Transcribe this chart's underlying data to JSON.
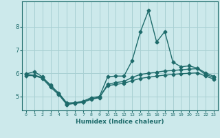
{
  "xlabel": "Humidex (Indice chaleur)",
  "bg_color": "#cce9eb",
  "grid_color": "#a8d0d3",
  "line_color": "#1e6b6b",
  "xlim": [
    -0.5,
    23.5
  ],
  "ylim": [
    4.4,
    9.1
  ],
  "yticks": [
    5,
    6,
    7,
    8
  ],
  "xticks": [
    0,
    1,
    2,
    3,
    4,
    5,
    6,
    7,
    8,
    9,
    10,
    11,
    12,
    13,
    14,
    15,
    16,
    17,
    18,
    19,
    20,
    21,
    22,
    23
  ],
  "curve1_x": [
    0,
    1,
    2,
    3,
    4,
    5,
    6,
    7,
    8,
    9,
    10,
    11,
    12,
    13,
    14,
    15,
    16,
    17,
    18,
    19,
    20,
    21,
    22,
    23
  ],
  "curve1_y": [
    5.97,
    6.07,
    5.85,
    5.45,
    5.15,
    4.72,
    4.73,
    4.8,
    4.95,
    5.0,
    5.85,
    5.88,
    5.88,
    6.55,
    7.78,
    8.7,
    7.35,
    7.8,
    6.48,
    6.28,
    6.32,
    6.22,
    6.02,
    5.87
  ],
  "curve2_x": [
    0,
    1,
    2,
    3,
    4,
    5,
    6,
    7,
    8,
    9,
    10,
    11,
    12,
    13,
    14,
    15,
    16,
    17,
    18,
    19,
    20,
    21,
    22,
    23
  ],
  "curve2_y": [
    5.9,
    5.9,
    5.78,
    5.4,
    5.08,
    4.65,
    4.7,
    4.75,
    4.88,
    4.95,
    5.53,
    5.6,
    5.65,
    5.82,
    5.95,
    6.0,
    6.05,
    6.1,
    6.12,
    6.15,
    6.18,
    6.2,
    5.95,
    5.82
  ],
  "curve3_x": [
    0,
    1,
    2,
    3,
    4,
    5,
    6,
    7,
    8,
    9,
    10,
    11,
    12,
    13,
    14,
    15,
    16,
    17,
    18,
    19,
    20,
    21,
    22,
    23
  ],
  "curve3_y": [
    5.95,
    5.92,
    5.82,
    5.5,
    5.12,
    4.68,
    4.72,
    4.77,
    4.9,
    4.97,
    5.47,
    5.52,
    5.57,
    5.68,
    5.78,
    5.83,
    5.88,
    5.92,
    5.95,
    5.98,
    6.0,
    6.02,
    5.88,
    5.75
  ],
  "marker_size": 2.5,
  "linewidth": 1.0
}
